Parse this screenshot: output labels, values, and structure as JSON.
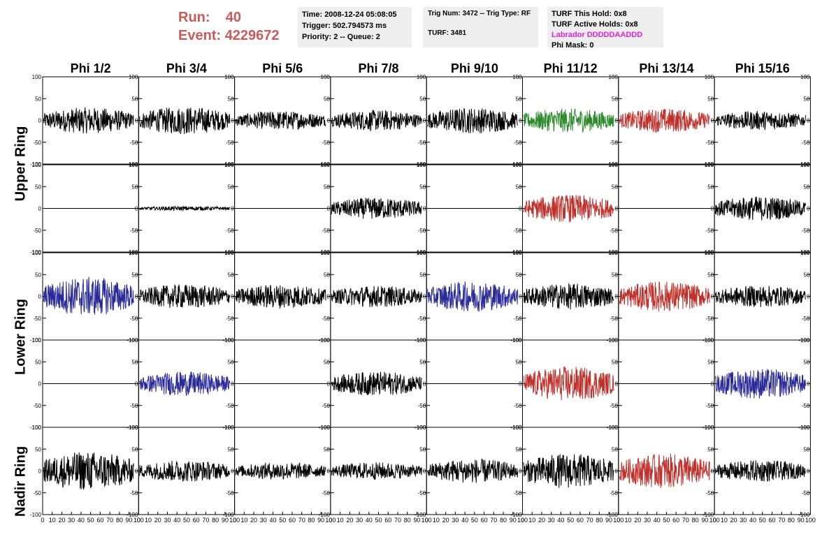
{
  "header": {
    "run_label": "Run:",
    "run_value": "40",
    "event_label": "Event:",
    "event_value": "4229672"
  },
  "info_box_1": {
    "time": "Time: 2008-12-24 05:08:05",
    "trigger": "Trigger: 502.794573 ms",
    "priority": "Priority: 2 -- Queue: 2"
  },
  "info_box_2": {
    "trig": "Trig Num: 3472 -- Trig Type: RF",
    "turf": "TURF: 3481"
  },
  "info_box_3": {
    "hold": "TURF This Hold: 0x8",
    "active": "TURF Active Holds: 0x8",
    "labrador": "Labrador DDDDDAADDD",
    "phi_mask": "Phi Mask: 0"
  },
  "colors": {
    "title_red": "#c85a5a",
    "labrador_magenta": "#e020e0",
    "trace_black": "#000000",
    "trace_green": "#2a8a2a",
    "trace_red": "#c0302a",
    "trace_blue": "#2a2a9a"
  },
  "chart_data": {
    "type": "line",
    "columns": [
      "Phi 1/2",
      "Phi 3/4",
      "Phi 5/6",
      "Phi 7/8",
      "Phi 9/10",
      "Phi 11/12",
      "Phi 13/14",
      "Phi 15/16"
    ],
    "ring_labels": [
      "Upper Ring",
      "Lower Ring",
      "Nadir Ring"
    ],
    "ylim": [
      -100,
      100
    ],
    "xlim": [
      0,
      100
    ],
    "y_ticks": [
      "100",
      "50",
      "0",
      "-50",
      "-100"
    ],
    "x_ticks": [
      "0",
      "10",
      "20",
      "30",
      "40",
      "50",
      "60",
      "70",
      "80",
      "90",
      "100"
    ],
    "rows": [
      [
        "black:30",
        "black:32",
        "black:22",
        "black:24",
        "black:30",
        "green:28",
        "red:28",
        "black:22"
      ],
      [
        "flat",
        "black:5",
        "flat",
        "black:25",
        "flat",
        "red:32",
        "flat",
        "black:28"
      ],
      [
        "blue:45",
        "black:28",
        "black:28",
        "black:25",
        "blue:35",
        "black:30",
        "red:35",
        "black:25"
      ],
      [
        "flat",
        "blue:28",
        "flat",
        "black:28",
        "flat",
        "red:40",
        "flat",
        "blue:35"
      ],
      [
        "black:45",
        "black:25",
        "black:20",
        "black:20",
        "black:28",
        "black:40",
        "red:40",
        "black:25"
      ]
    ]
  }
}
